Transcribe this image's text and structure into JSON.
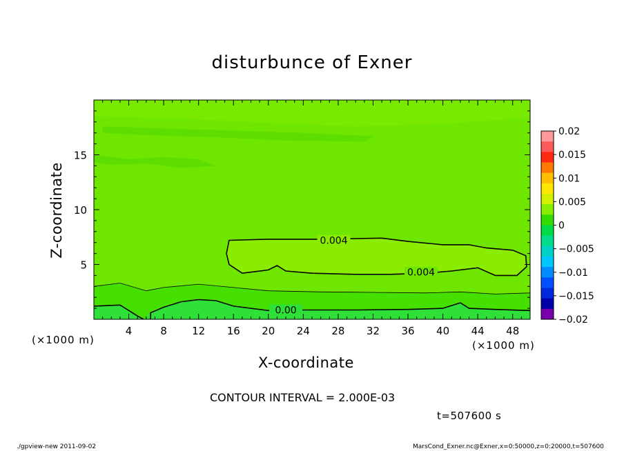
{
  "chart_data": {
    "type": "contour",
    "title": "disturbunce of Exner",
    "xlabel": "X-coordinate",
    "ylabel": "Z-coordinate",
    "x_unit": "(×1000 m)",
    "xlim": [
      0,
      50
    ],
    "ylim": [
      0,
      20
    ],
    "x_ticks": [
      4,
      8,
      12,
      16,
      20,
      24,
      28,
      32,
      36,
      40,
      44,
      48
    ],
    "y_ticks": [
      5,
      10,
      15
    ],
    "contour_interval": "CONTOUR INTERVAL = 2.000E-03",
    "contour_labels": [
      "0.004",
      "0.004",
      "0.00"
    ],
    "colorbar": {
      "ticks": [
        "0.02",
        "0.015",
        "0.01",
        "0.005",
        "0",
        "−0.005",
        "−0.01",
        "−0.015",
        "−0.02"
      ],
      "colors": [
        "#ff9999",
        "#ff5a5a",
        "#ff2a12",
        "#ff7800",
        "#ffbe00",
        "#ffe600",
        "#d2f000",
        "#87f000",
        "#32dc00",
        "#00dc46",
        "#00dc8c",
        "#00d2c8",
        "#00c8ff",
        "#008cff",
        "#0050ff",
        "#0028dc",
        "#0000aa",
        "#7800aa"
      ]
    },
    "time": "t=507600 s"
  },
  "footer": {
    "left": "./gpview-new  2011-09-02",
    "right": "MarsCond_Exner.nc@Exner,x=0:50000,z=0:20000,t=507600"
  }
}
